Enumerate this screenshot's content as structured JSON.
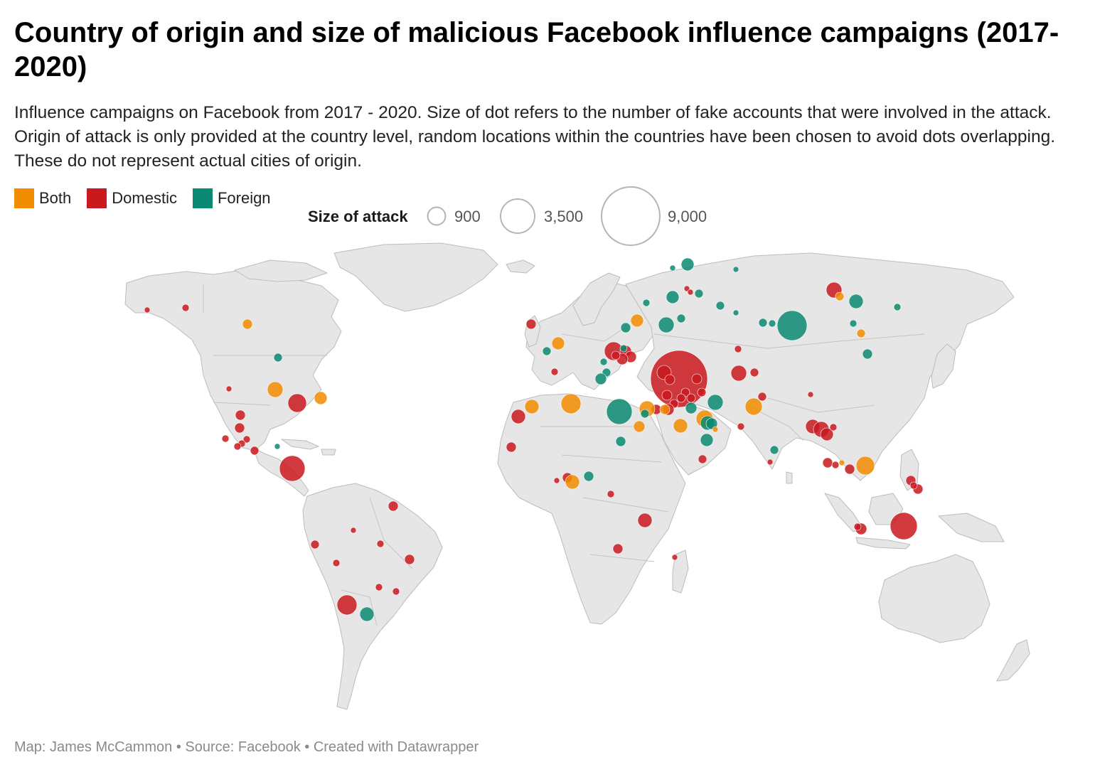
{
  "title": "Country of origin and size of malicious Facebook influence campaigns (2017-2020)",
  "subtitle": "Influence campaigns on Facebook from 2017 - 2020. Size of dot refers to the number of fake accounts that were involved in the attack. Origin of attack is only provided at the country level, random locations within the countries have been chosen to avoid dots overlapping. These do not represent actual cities of origin.",
  "legend": {
    "categories": [
      {
        "label": "Both",
        "color": "#f28c00"
      },
      {
        "label": "Domestic",
        "color": "#c9191e"
      },
      {
        "label": "Foreign",
        "color": "#0a8a72"
      }
    ],
    "size_title": "Size of attack",
    "sizes": [
      {
        "label": "900",
        "value": 900
      },
      {
        "label": "3,500",
        "value": 3500
      },
      {
        "label": "9,000",
        "value": 9000
      }
    ]
  },
  "map": {
    "land_color": "#e6e6e6",
    "border_color": "#b9b9b9",
    "dot_opacity": 0.85
  },
  "footer": "Map: James McCammon • Source: Facebook • Created with Datawrapper"
}
